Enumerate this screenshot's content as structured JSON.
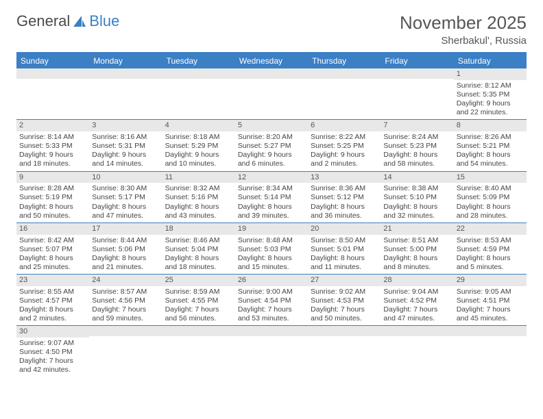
{
  "logo": {
    "text1": "General",
    "text2": "Blue",
    "accent_color": "#3b7fc4",
    "fg_color": "#4a4a4a"
  },
  "title": "November 2025",
  "subtitle": "Sherbakul', Russia",
  "day_names": [
    "Sunday",
    "Monday",
    "Tuesday",
    "Wednesday",
    "Thursday",
    "Friday",
    "Saturday"
  ],
  "header_bg": "#3b7fc4",
  "row_label_bg": "#e8e8e8",
  "days": [
    {
      "n": "",
      "sr": "",
      "ss": "",
      "dl": ""
    },
    {
      "n": "",
      "sr": "",
      "ss": "",
      "dl": ""
    },
    {
      "n": "",
      "sr": "",
      "ss": "",
      "dl": ""
    },
    {
      "n": "",
      "sr": "",
      "ss": "",
      "dl": ""
    },
    {
      "n": "",
      "sr": "",
      "ss": "",
      "dl": ""
    },
    {
      "n": "",
      "sr": "",
      "ss": "",
      "dl": ""
    },
    {
      "n": "1",
      "sr": "Sunrise: 8:12 AM",
      "ss": "Sunset: 5:35 PM",
      "dl": "Daylight: 9 hours and 22 minutes."
    },
    {
      "n": "2",
      "sr": "Sunrise: 8:14 AM",
      "ss": "Sunset: 5:33 PM",
      "dl": "Daylight: 9 hours and 18 minutes."
    },
    {
      "n": "3",
      "sr": "Sunrise: 8:16 AM",
      "ss": "Sunset: 5:31 PM",
      "dl": "Daylight: 9 hours and 14 minutes."
    },
    {
      "n": "4",
      "sr": "Sunrise: 8:18 AM",
      "ss": "Sunset: 5:29 PM",
      "dl": "Daylight: 9 hours and 10 minutes."
    },
    {
      "n": "5",
      "sr": "Sunrise: 8:20 AM",
      "ss": "Sunset: 5:27 PM",
      "dl": "Daylight: 9 hours and 6 minutes."
    },
    {
      "n": "6",
      "sr": "Sunrise: 8:22 AM",
      "ss": "Sunset: 5:25 PM",
      "dl": "Daylight: 9 hours and 2 minutes."
    },
    {
      "n": "7",
      "sr": "Sunrise: 8:24 AM",
      "ss": "Sunset: 5:23 PM",
      "dl": "Daylight: 8 hours and 58 minutes."
    },
    {
      "n": "8",
      "sr": "Sunrise: 8:26 AM",
      "ss": "Sunset: 5:21 PM",
      "dl": "Daylight: 8 hours and 54 minutes."
    },
    {
      "n": "9",
      "sr": "Sunrise: 8:28 AM",
      "ss": "Sunset: 5:19 PM",
      "dl": "Daylight: 8 hours and 50 minutes."
    },
    {
      "n": "10",
      "sr": "Sunrise: 8:30 AM",
      "ss": "Sunset: 5:17 PM",
      "dl": "Daylight: 8 hours and 47 minutes."
    },
    {
      "n": "11",
      "sr": "Sunrise: 8:32 AM",
      "ss": "Sunset: 5:16 PM",
      "dl": "Daylight: 8 hours and 43 minutes."
    },
    {
      "n": "12",
      "sr": "Sunrise: 8:34 AM",
      "ss": "Sunset: 5:14 PM",
      "dl": "Daylight: 8 hours and 39 minutes."
    },
    {
      "n": "13",
      "sr": "Sunrise: 8:36 AM",
      "ss": "Sunset: 5:12 PM",
      "dl": "Daylight: 8 hours and 36 minutes."
    },
    {
      "n": "14",
      "sr": "Sunrise: 8:38 AM",
      "ss": "Sunset: 5:10 PM",
      "dl": "Daylight: 8 hours and 32 minutes."
    },
    {
      "n": "15",
      "sr": "Sunrise: 8:40 AM",
      "ss": "Sunset: 5:09 PM",
      "dl": "Daylight: 8 hours and 28 minutes."
    },
    {
      "n": "16",
      "sr": "Sunrise: 8:42 AM",
      "ss": "Sunset: 5:07 PM",
      "dl": "Daylight: 8 hours and 25 minutes."
    },
    {
      "n": "17",
      "sr": "Sunrise: 8:44 AM",
      "ss": "Sunset: 5:06 PM",
      "dl": "Daylight: 8 hours and 21 minutes."
    },
    {
      "n": "18",
      "sr": "Sunrise: 8:46 AM",
      "ss": "Sunset: 5:04 PM",
      "dl": "Daylight: 8 hours and 18 minutes."
    },
    {
      "n": "19",
      "sr": "Sunrise: 8:48 AM",
      "ss": "Sunset: 5:03 PM",
      "dl": "Daylight: 8 hours and 15 minutes."
    },
    {
      "n": "20",
      "sr": "Sunrise: 8:50 AM",
      "ss": "Sunset: 5:01 PM",
      "dl": "Daylight: 8 hours and 11 minutes."
    },
    {
      "n": "21",
      "sr": "Sunrise: 8:51 AM",
      "ss": "Sunset: 5:00 PM",
      "dl": "Daylight: 8 hours and 8 minutes."
    },
    {
      "n": "22",
      "sr": "Sunrise: 8:53 AM",
      "ss": "Sunset: 4:59 PM",
      "dl": "Daylight: 8 hours and 5 minutes."
    },
    {
      "n": "23",
      "sr": "Sunrise: 8:55 AM",
      "ss": "Sunset: 4:57 PM",
      "dl": "Daylight: 8 hours and 2 minutes."
    },
    {
      "n": "24",
      "sr": "Sunrise: 8:57 AM",
      "ss": "Sunset: 4:56 PM",
      "dl": "Daylight: 7 hours and 59 minutes."
    },
    {
      "n": "25",
      "sr": "Sunrise: 8:59 AM",
      "ss": "Sunset: 4:55 PM",
      "dl": "Daylight: 7 hours and 56 minutes."
    },
    {
      "n": "26",
      "sr": "Sunrise: 9:00 AM",
      "ss": "Sunset: 4:54 PM",
      "dl": "Daylight: 7 hours and 53 minutes."
    },
    {
      "n": "27",
      "sr": "Sunrise: 9:02 AM",
      "ss": "Sunset: 4:53 PM",
      "dl": "Daylight: 7 hours and 50 minutes."
    },
    {
      "n": "28",
      "sr": "Sunrise: 9:04 AM",
      "ss": "Sunset: 4:52 PM",
      "dl": "Daylight: 7 hours and 47 minutes."
    },
    {
      "n": "29",
      "sr": "Sunrise: 9:05 AM",
      "ss": "Sunset: 4:51 PM",
      "dl": "Daylight: 7 hours and 45 minutes."
    },
    {
      "n": "30",
      "sr": "Sunrise: 9:07 AM",
      "ss": "Sunset: 4:50 PM",
      "dl": "Daylight: 7 hours and 42 minutes."
    },
    {
      "n": "",
      "sr": "",
      "ss": "",
      "dl": ""
    },
    {
      "n": "",
      "sr": "",
      "ss": "",
      "dl": ""
    },
    {
      "n": "",
      "sr": "",
      "ss": "",
      "dl": ""
    },
    {
      "n": "",
      "sr": "",
      "ss": "",
      "dl": ""
    },
    {
      "n": "",
      "sr": "",
      "ss": "",
      "dl": ""
    },
    {
      "n": "",
      "sr": "",
      "ss": "",
      "dl": ""
    }
  ]
}
